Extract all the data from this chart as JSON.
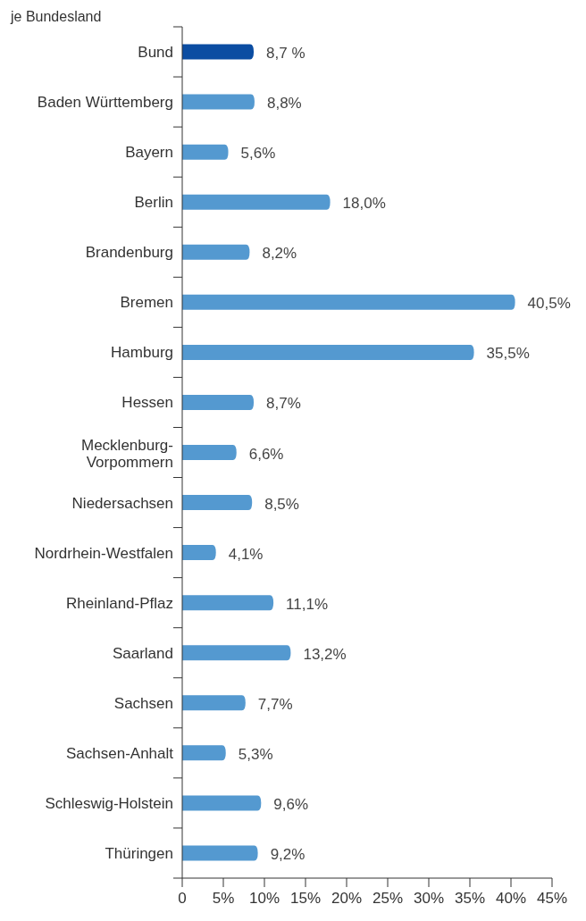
{
  "chart_data": {
    "type": "bar",
    "orientation": "horizontal",
    "title": "je Bundesland",
    "categories": [
      "Bund",
      "Baden Württemberg",
      "Bayern",
      "Berlin",
      "Brandenburg",
      "Bremen",
      "Hamburg",
      "Hessen",
      "Mecklenburg-\nVorpommern",
      "Niedersachsen",
      "Nordrhein-Westfalen",
      "Rheinland-Pflaz",
      "Saarland",
      "Sachsen",
      "Sachsen-Anhalt",
      "Schleswig-Holstein",
      "Thüringen"
    ],
    "values": [
      8.7,
      8.8,
      5.6,
      18.0,
      8.2,
      40.5,
      35.5,
      8.7,
      6.6,
      8.5,
      4.1,
      11.1,
      13.2,
      7.7,
      5.3,
      9.6,
      9.2
    ],
    "colors": [
      "#0b4da2",
      "#5499d0",
      "#5499d0",
      "#5499d0",
      "#5499d0",
      "#5499d0",
      "#5499d0",
      "#5499d0",
      "#5499d0",
      "#5499d0",
      "#5499d0",
      "#5499d0",
      "#5499d0",
      "#5499d0",
      "#5499d0",
      "#5499d0",
      "#5499d0"
    ],
    "value_labels": [
      "8,7 %",
      "8,8%",
      "5,6%",
      "18,0%",
      "8,2%",
      "40,5%",
      "35,5%",
      "8,7%",
      "6,6%",
      "8,5%",
      "4,1%",
      "11,1%",
      "13,2%",
      "7,7%",
      "5,3%",
      "9,6%",
      "9,2%"
    ],
    "xlim": [
      0,
      45
    ],
    "xticks": [
      0,
      {
        "value": 5,
        "label": "5%"
      },
      {
        "value": 10,
        "label": "10%"
      },
      {
        "value": 15,
        "label": "15%"
      },
      {
        "value": 20,
        "label": "20%"
      },
      {
        "value": 25,
        "label": "25%"
      },
      {
        "value": 30,
        "label": "30%"
      },
      {
        "value": 35,
        "label": "35%"
      },
      {
        "value": 40,
        "label": "40%"
      },
      {
        "value": 45,
        "label": "45%"
      }
    ],
    "grid": false
  }
}
